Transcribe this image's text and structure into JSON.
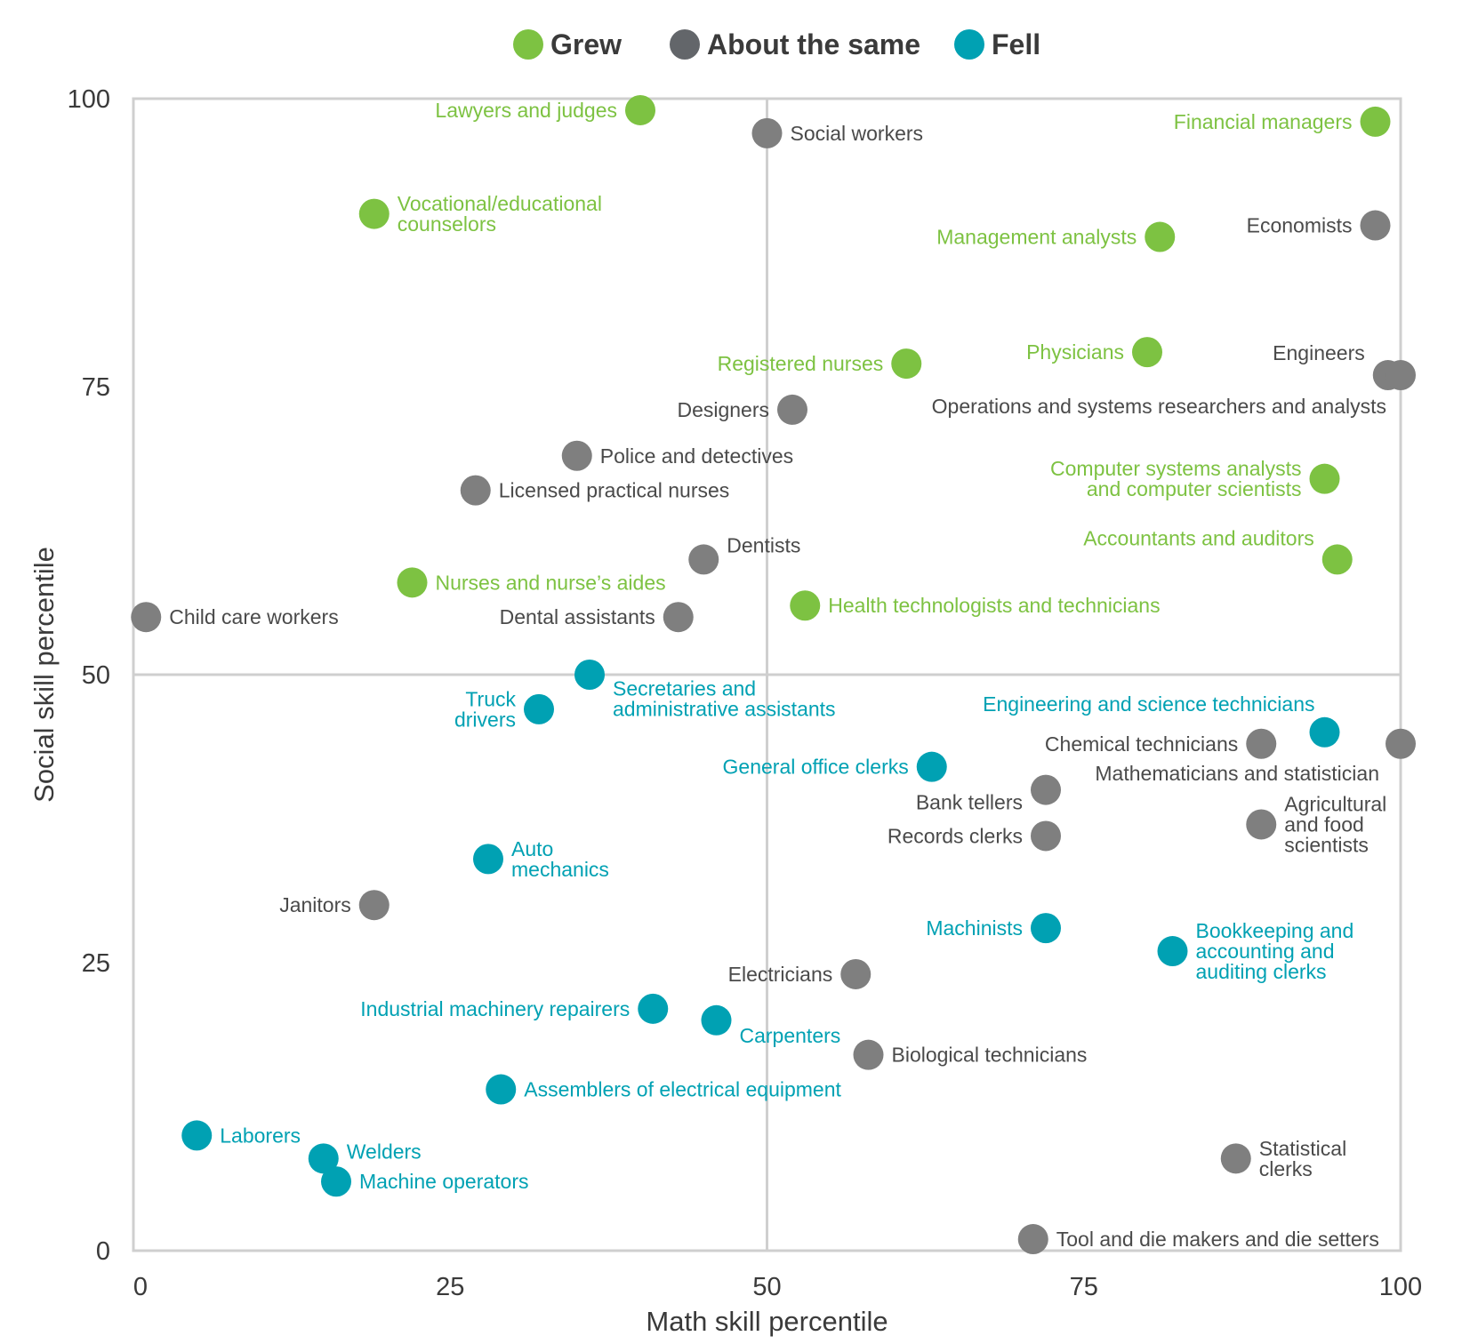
{
  "chart_data": {
    "type": "scatter",
    "xlabel": "Math skill percentile",
    "ylabel": "Social skill percentile",
    "xlim": [
      0,
      100
    ],
    "ylim": [
      0,
      100
    ],
    "x_ticks": [
      0,
      25,
      50,
      75,
      100
    ],
    "y_ticks": [
      0,
      25,
      50,
      75,
      100
    ],
    "reference_lines": {
      "x": 50,
      "y": 50
    },
    "grid": false,
    "legend_position": "top-center",
    "legend": [
      {
        "key": "grew",
        "label": "Grew",
        "color": "#7dc242"
      },
      {
        "key": "same",
        "label": "About the same",
        "color": "#63666a"
      },
      {
        "key": "fell",
        "label": "Fell",
        "color": "#00a1b3"
      }
    ],
    "series_colors": {
      "grew": "#7dc242",
      "same": "#7f7f7f",
      "fell": "#00a1b3"
    },
    "label_colors": {
      "grew": "#7dc242",
      "same": "#4a4a4a",
      "fell": "#00a1b3"
    },
    "points": [
      {
        "label": [
          "Lawyers and judges"
        ],
        "x": 40,
        "y": 99,
        "group": "grew",
        "side": "left"
      },
      {
        "label": [
          "Social workers"
        ],
        "x": 50,
        "y": 97,
        "group": "same",
        "side": "right"
      },
      {
        "label": [
          "Financial managers"
        ],
        "x": 98,
        "y": 98,
        "group": "grew",
        "side": "left"
      },
      {
        "label": [
          "Vocational/educational",
          "counselors"
        ],
        "x": 19,
        "y": 90,
        "group": "grew",
        "side": "right"
      },
      {
        "label": [
          "Management analysts"
        ],
        "x": 81,
        "y": 88,
        "group": "grew",
        "side": "left"
      },
      {
        "label": [
          "Economists"
        ],
        "x": 98,
        "y": 89,
        "group": "same",
        "side": "left"
      },
      {
        "label": [
          "Registered nurses"
        ],
        "x": 61,
        "y": 77,
        "group": "grew",
        "side": "left"
      },
      {
        "label": [
          "Physicians"
        ],
        "x": 80,
        "y": 78,
        "group": "grew",
        "side": "left"
      },
      {
        "label": [
          "Engineers"
        ],
        "x": 99,
        "y": 76,
        "group": "same",
        "side": "left",
        "dy": -25
      },
      {
        "label": [
          "Operations and systems researchers and analysts"
        ],
        "x": 100,
        "y": 76,
        "group": "same",
        "side": "left",
        "dx": 10,
        "dy": 35
      },
      {
        "label": [
          "Designers"
        ],
        "x": 52,
        "y": 73,
        "group": "same",
        "side": "left"
      },
      {
        "label": [
          "Police and detectives"
        ],
        "x": 35,
        "y": 69,
        "group": "same",
        "side": "right"
      },
      {
        "label": [
          "Licensed practical nurses"
        ],
        "x": 27,
        "y": 66,
        "group": "same",
        "side": "right"
      },
      {
        "label": [
          "Computer systems analysts",
          "and computer scientists"
        ],
        "x": 94,
        "y": 67,
        "group": "grew",
        "side": "left"
      },
      {
        "label": [
          "Dentists"
        ],
        "x": 45,
        "y": 60,
        "group": "same",
        "side": "right",
        "dy": -16
      },
      {
        "label": [
          "Accountants and auditors"
        ],
        "x": 95,
        "y": 60,
        "group": "grew",
        "side": "left",
        "dy": -24
      },
      {
        "label": [
          "Nurses and nurse’s aides"
        ],
        "x": 22,
        "y": 58,
        "group": "grew",
        "side": "right"
      },
      {
        "label": [
          "Health technologists and technicians"
        ],
        "x": 53,
        "y": 56,
        "group": "grew",
        "side": "right"
      },
      {
        "label": [
          "Child care workers"
        ],
        "x": 1,
        "y": 55,
        "group": "same",
        "side": "right"
      },
      {
        "label": [
          "Dental assistants"
        ],
        "x": 43,
        "y": 55,
        "group": "same",
        "side": "left"
      },
      {
        "label": [
          "Secretaries and",
          "administrative assistants"
        ],
        "x": 36,
        "y": 50,
        "group": "fell",
        "side": "right",
        "dy": 27
      },
      {
        "label": [
          "Truck",
          "drivers"
        ],
        "x": 32,
        "y": 47,
        "group": "fell",
        "side": "left"
      },
      {
        "label": [
          "Engineering and science technicians"
        ],
        "x": 94,
        "y": 45,
        "group": "fell",
        "side": "left",
        "dx": 15,
        "dy": -32
      },
      {
        "label": [
          "Chemical technicians"
        ],
        "x": 89,
        "y": 44,
        "group": "same",
        "side": "left"
      },
      {
        "label": [
          "Mathematicians and statistician"
        ],
        "x": 100,
        "y": 44,
        "group": "same",
        "side": "left",
        "dx": 2,
        "dy": 33
      },
      {
        "label": [
          "General office clerks"
        ],
        "x": 63,
        "y": 42,
        "group": "fell",
        "side": "left"
      },
      {
        "label": [
          "Bank tellers"
        ],
        "x": 72,
        "y": 40,
        "group": "same",
        "side": "left",
        "dy": 14
      },
      {
        "label": [
          "Agricultural",
          "and food",
          "scientists"
        ],
        "x": 89,
        "y": 37,
        "group": "same",
        "side": "right"
      },
      {
        "label": [
          "Records clerks"
        ],
        "x": 72,
        "y": 36,
        "group": "same",
        "side": "left"
      },
      {
        "label": [
          "Auto",
          "mechanics"
        ],
        "x": 28,
        "y": 34,
        "group": "fell",
        "side": "right"
      },
      {
        "label": [
          "Janitors"
        ],
        "x": 19,
        "y": 30,
        "group": "same",
        "side": "left"
      },
      {
        "label": [
          "Machinists"
        ],
        "x": 72,
        "y": 28,
        "group": "fell",
        "side": "left"
      },
      {
        "label": [
          "Bookkeeping and",
          "accounting and",
          "auditing clerks"
        ],
        "x": 82,
        "y": 26,
        "group": "fell",
        "side": "right"
      },
      {
        "label": [
          "Electricians"
        ],
        "x": 57,
        "y": 24,
        "group": "same",
        "side": "left"
      },
      {
        "label": [
          "Industrial machinery repairers"
        ],
        "x": 41,
        "y": 21,
        "group": "fell",
        "side": "left"
      },
      {
        "label": [
          "Carpenters"
        ],
        "x": 46,
        "y": 20,
        "group": "fell",
        "side": "right",
        "dy": 17
      },
      {
        "label": [
          "Biological technicians"
        ],
        "x": 58,
        "y": 17,
        "group": "same",
        "side": "right"
      },
      {
        "label": [
          "Assemblers of electrical equipment"
        ],
        "x": 29,
        "y": 14,
        "group": "fell",
        "side": "right"
      },
      {
        "label": [
          "Laborers"
        ],
        "x": 5,
        "y": 10,
        "group": "fell",
        "side": "right"
      },
      {
        "label": [
          "Welders"
        ],
        "x": 15,
        "y": 8,
        "group": "fell",
        "side": "right",
        "dy": -8
      },
      {
        "label": [
          "Statistical",
          "clerks"
        ],
        "x": 87,
        "y": 8,
        "group": "same",
        "side": "right"
      },
      {
        "label": [
          "Machine operators"
        ],
        "x": 16,
        "y": 6,
        "group": "fell",
        "side": "right"
      },
      {
        "label": [
          "Tool and die makers and die setters"
        ],
        "x": 71,
        "y": 1,
        "group": "same",
        "side": "right"
      }
    ]
  }
}
